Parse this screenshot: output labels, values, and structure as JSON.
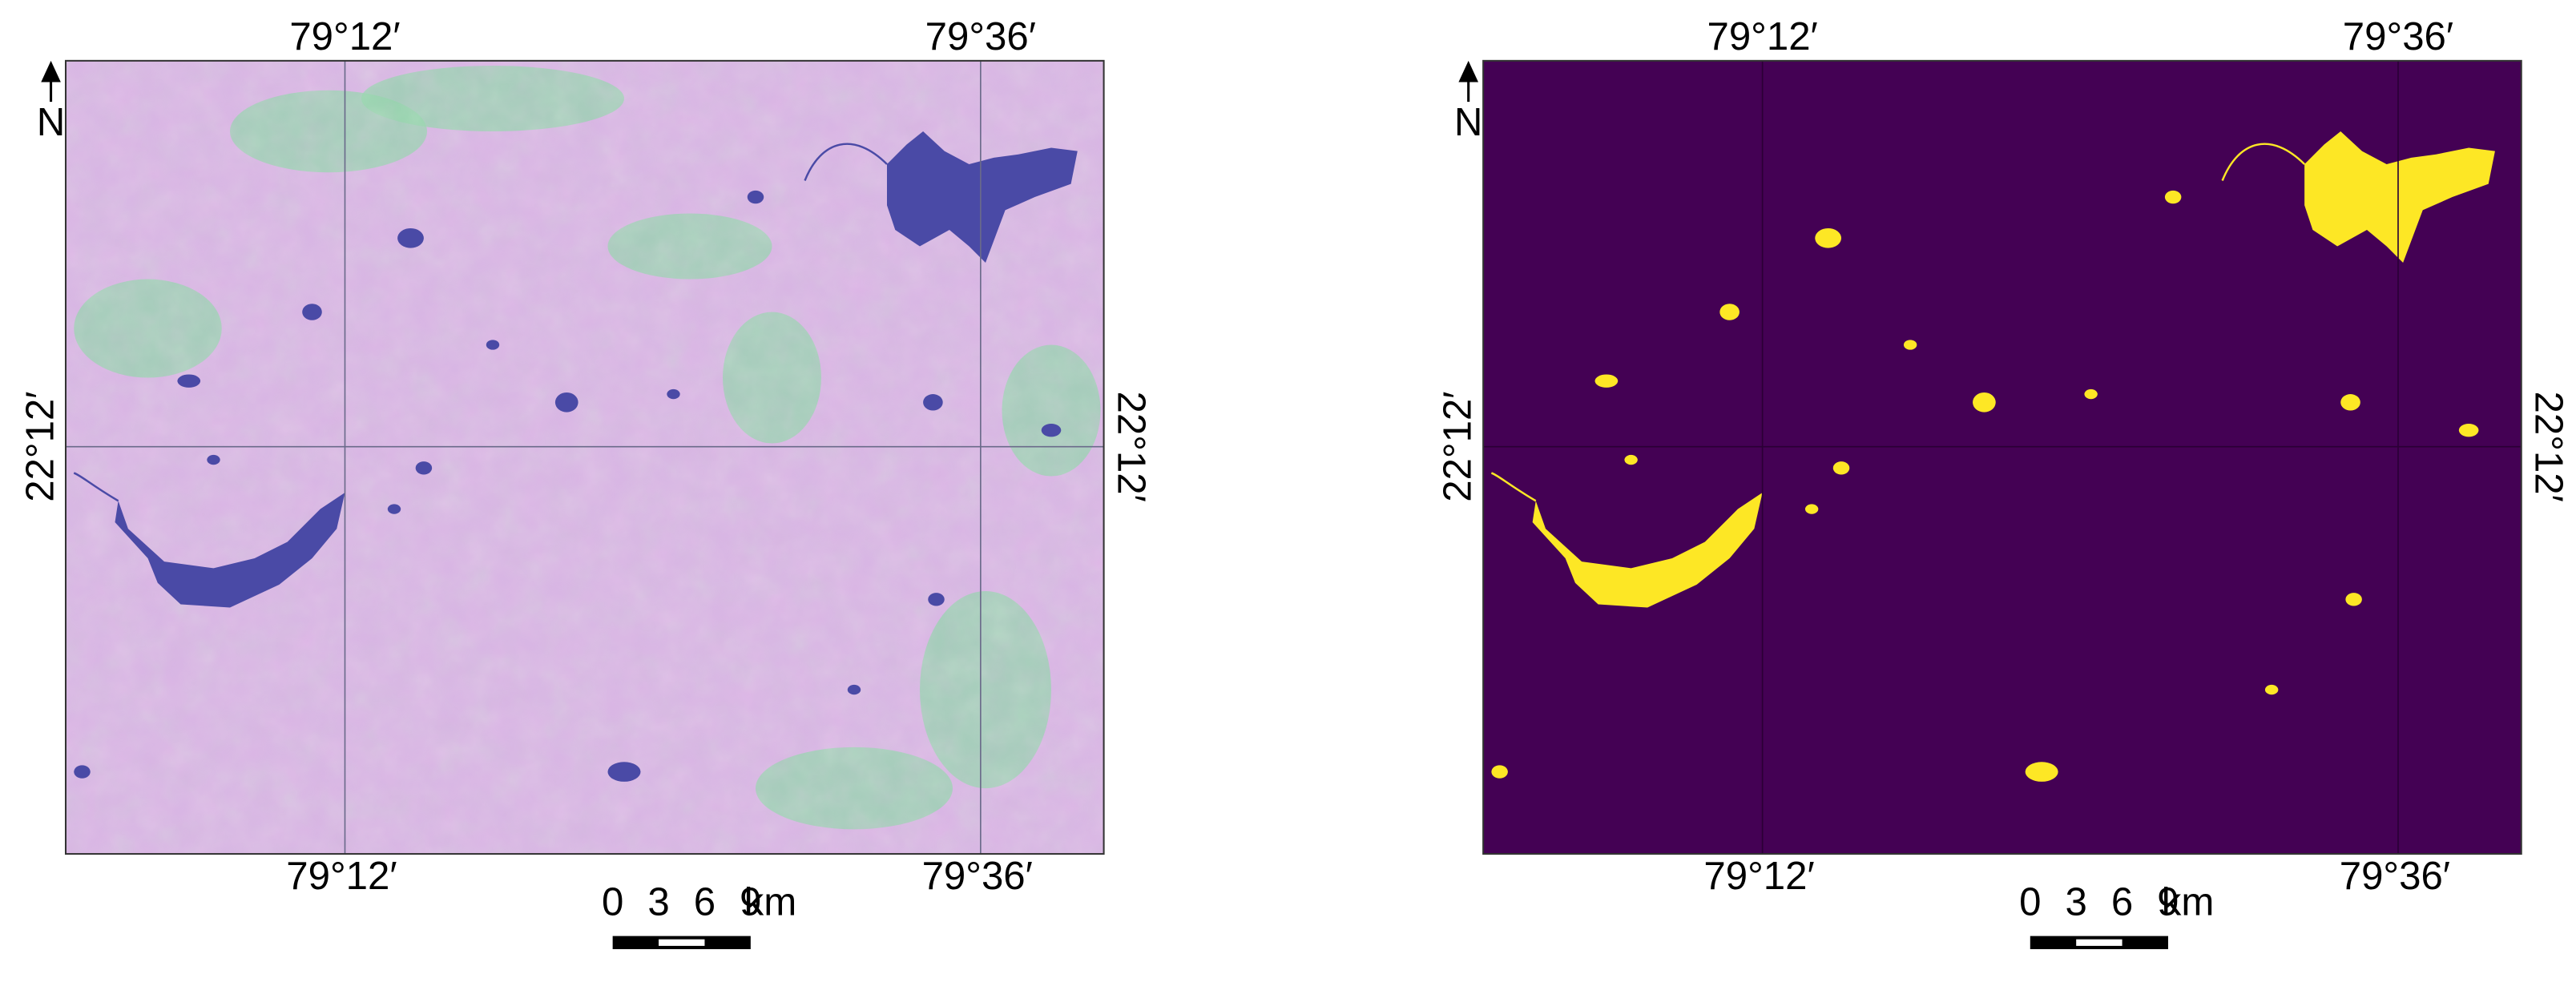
{
  "panels": [
    {
      "top_labels": [
        "79°12′",
        "79°36′"
      ],
      "bottom_labels": [
        "79°12′",
        "79°36′"
      ],
      "left_label": "22°12′",
      "right_label": "22°12′",
      "north": "N",
      "scale_bar": {
        "ticks": [
          "0",
          "3",
          "6",
          "9"
        ],
        "unit": "km"
      }
    },
    {
      "top_labels": [
        "79°12′",
        "79°36′"
      ],
      "bottom_labels": [
        "79°12′",
        "79°36′"
      ],
      "left_label": "22°12′",
      "right_label": "22°12′",
      "north": "N",
      "scale_bar": {
        "ticks": [
          "0",
          "3",
          "6",
          "9"
        ],
        "unit": "km"
      }
    }
  ]
}
